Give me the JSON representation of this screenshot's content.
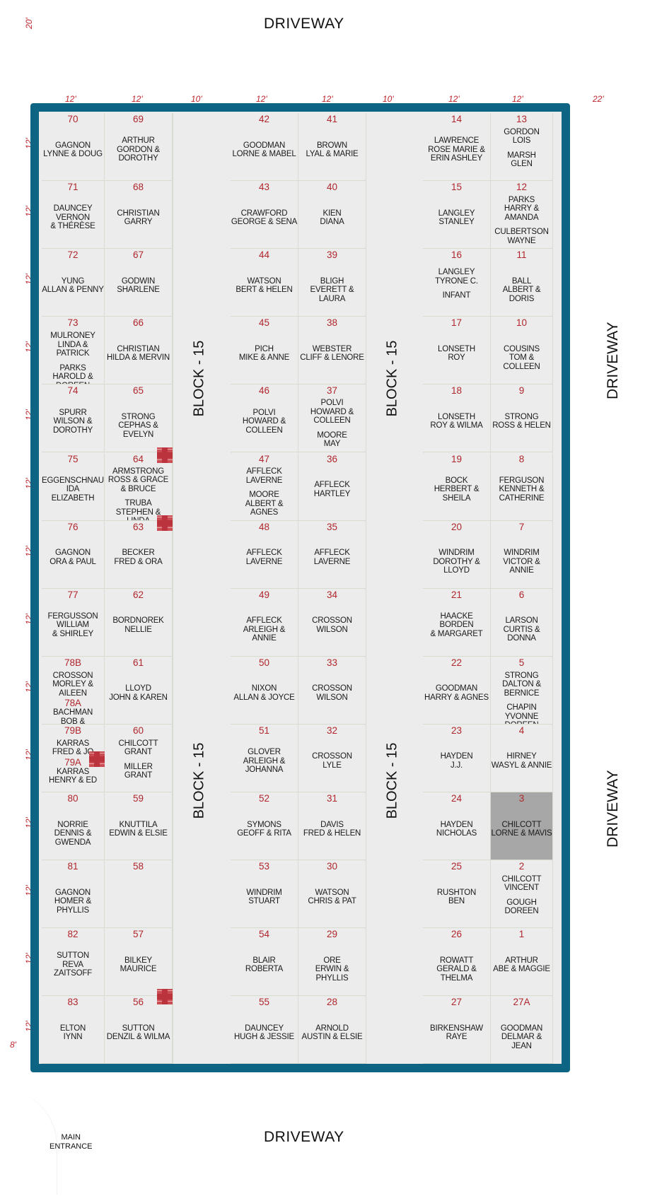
{
  "driveways": {
    "top": "DRIVEWAY",
    "bottom": "DRIVEWAY",
    "right_upper": "DRIVEWAY",
    "right_lower": "DRIVEWAY"
  },
  "dimensions": {
    "corner": "20'",
    "columns": [
      "12'",
      "12'",
      "10'",
      "12'",
      "12'",
      "10'",
      "12'",
      "12'",
      "22'"
    ],
    "row": "12'",
    "bottom_left": "8'"
  },
  "block_label": "BLOCK - 15",
  "entrance": {
    "line1": "MAIN",
    "line2": "ENTRANCE"
  },
  "colors": {
    "frame": "#0d6483",
    "plot_number": "#b0262c",
    "occupied_grey": "#a7a7a7",
    "marker": "#c93b44"
  },
  "columns": [
    [
      {
        "n": "70",
        "lines": [
          "GAGNON",
          "LYNNE  &  DOUG"
        ]
      },
      {
        "n": "71",
        "lines": [
          "DAUNCEY",
          "VERNON",
          "& THÉRÈSE"
        ]
      },
      {
        "n": "72",
        "lines": [
          "YUNG",
          "ALLAN & PENNY"
        ]
      },
      {
        "n": "73",
        "lines": [
          "MULRONEY",
          "LINDA & PATRICK",
          "",
          "PARKS",
          "HAROLD & DOREEN"
        ]
      },
      {
        "n": "74",
        "lines": [
          "SPURR",
          "WILSON &",
          "DOROTHY"
        ]
      },
      {
        "n": "75",
        "lines": [
          "EGGENSCHNAUR",
          "IDA",
          "ELIZABETH"
        ]
      },
      {
        "n": "76",
        "lines": [
          "GAGNON",
          "ORA & PAUL"
        ]
      },
      {
        "n": "77",
        "lines": [
          "FERGUSSON",
          "WILLIAM",
          "& SHIRLEY"
        ]
      },
      {
        "n": "78B",
        "lines": [
          "CROSSON",
          "MORLEY & AILEEN",
          "#78A",
          "BACHMAN",
          "BOB & DARLENE"
        ]
      },
      {
        "n": "79B",
        "lines": [
          "KARRAS",
          "FRED & JO",
          "#79A",
          "KARRAS",
          "HENRY & ED"
        ]
      },
      {
        "n": "80",
        "lines": [
          "NORRIE",
          "DENNIS & GWENDA"
        ]
      },
      {
        "n": "81",
        "lines": [
          "GAGNON",
          "HOMER & PHYLLIS"
        ]
      },
      {
        "n": "82",
        "lines": [
          "SUTTON",
          "REVA",
          "ZAITSOFF"
        ]
      },
      {
        "n": "83",
        "lines": [
          "ELTON",
          "IYNN"
        ]
      }
    ],
    [
      {
        "n": "69",
        "lines": [
          "ARTHUR",
          "GORDON &",
          "DOROTHY"
        ]
      },
      {
        "n": "68",
        "lines": [
          "CHRISTIAN",
          "GARRY"
        ]
      },
      {
        "n": "67",
        "lines": [
          "GODWIN",
          "SHARLENE"
        ]
      },
      {
        "n": "66",
        "lines": [
          "CHRISTIAN",
          "HILDA & MERVIN"
        ]
      },
      {
        "n": "65",
        "lines": [
          "STRONG",
          "CEPHAS & EVELYN"
        ]
      },
      {
        "n": "64",
        "lines": [
          "ARMSTRONG",
          "ROSS & GRACE",
          "& BRUCE",
          "",
          "TRUBA",
          "STEPHEN & LINDA"
        ]
      },
      {
        "n": "63",
        "lines": [
          "BECKER",
          "FRED & ORA"
        ]
      },
      {
        "n": "62",
        "lines": [
          "BORDNOREK",
          "NELLIE"
        ]
      },
      {
        "n": "61",
        "lines": [
          "LLOYD",
          "JOHN & KAREN"
        ]
      },
      {
        "n": "60",
        "lines": [
          "CHILCOTT",
          "GRANT",
          "",
          "MILLER",
          "GRANT"
        ]
      },
      {
        "n": "59",
        "lines": [
          "KNUTTILA",
          "EDWIN & ELSIE"
        ]
      },
      {
        "n": "58",
        "lines": []
      },
      {
        "n": "57",
        "lines": [
          "BILKEY",
          "MAURICE"
        ]
      },
      {
        "n": "56",
        "lines": [
          "SUTTON",
          "DENZIL & WILMA"
        ]
      }
    ],
    [
      {
        "n": "42",
        "lines": [
          "GOODMAN",
          "LORNE & MABEL"
        ]
      },
      {
        "n": "43",
        "lines": [
          "CRAWFORD",
          "GEORGE & SENA"
        ]
      },
      {
        "n": "44",
        "lines": [
          "WATSON",
          "BERT & HELEN"
        ]
      },
      {
        "n": "45",
        "lines": [
          "PICH",
          "MIKE & ANNE"
        ]
      },
      {
        "n": "46",
        "lines": [
          "POLVI",
          "HOWARD &",
          "COLLEEN"
        ]
      },
      {
        "n": "47",
        "lines": [
          "AFFLECK",
          "LAVERNE",
          "",
          "MOORE",
          "ALBERT & AGNES"
        ]
      },
      {
        "n": "48",
        "lines": [
          "AFFLECK",
          "LAVERNE"
        ]
      },
      {
        "n": "49",
        "lines": [
          "AFFLECK",
          "ARLEIGH & ANNIE"
        ]
      },
      {
        "n": "50",
        "lines": [
          "NIXON",
          "ALLAN & JOYCE"
        ]
      },
      {
        "n": "51",
        "lines": [
          "GLOVER",
          "ARLEIGH &",
          "JOHANNA"
        ]
      },
      {
        "n": "52",
        "lines": [
          "SYMONS",
          "GEOFF & RITA"
        ]
      },
      {
        "n": "53",
        "lines": [
          "WINDRIM",
          "STUART"
        ]
      },
      {
        "n": "54",
        "lines": [
          "BLAIR",
          "ROBERTA"
        ]
      },
      {
        "n": "55",
        "lines": [
          "DAUNCEY",
          "HUGH & JESSIE"
        ]
      }
    ],
    [
      {
        "n": "41",
        "lines": [
          "BROWN",
          "LYAL & MARIE"
        ]
      },
      {
        "n": "40",
        "lines": [
          "KIEN",
          "DIANA"
        ]
      },
      {
        "n": "39",
        "lines": [
          "BLIGH",
          "EVERETT & LAURA"
        ]
      },
      {
        "n": "38",
        "lines": [
          "WEBSTER",
          "CLIFF & LENORE"
        ]
      },
      {
        "n": "37",
        "lines": [
          "POLVI",
          "HOWARD &",
          "COLLEEN",
          "",
          "MOORE",
          "MAY"
        ]
      },
      {
        "n": "36",
        "lines": [
          "AFFLECK",
          "HARTLEY"
        ]
      },
      {
        "n": "35",
        "lines": [
          "AFFLECK",
          "LAVERNE"
        ]
      },
      {
        "n": "34",
        "lines": [
          "CROSSON",
          "WILSON"
        ]
      },
      {
        "n": "33",
        "lines": [
          "CROSSON",
          "WILSON"
        ]
      },
      {
        "n": "32",
        "lines": [
          "CROSSON",
          "LYLE"
        ]
      },
      {
        "n": "31",
        "lines": [
          "DAVIS",
          "FRED & HELEN"
        ]
      },
      {
        "n": "30",
        "lines": [
          "WATSON",
          "CHRIS & PAT"
        ]
      },
      {
        "n": "29",
        "lines": [
          "ORE",
          "ERWIN & PHYLLIS"
        ]
      },
      {
        "n": "28",
        "lines": [
          "ARNOLD",
          "AUSTIN & ELSIE"
        ]
      }
    ],
    [
      {
        "n": "14",
        "lines": [
          "LAWRENCE",
          "ROSE MARIE &",
          "ERIN ASHLEY"
        ]
      },
      {
        "n": "15",
        "lines": [
          "LANGLEY",
          "STANLEY"
        ]
      },
      {
        "n": "16",
        "lines": [
          "LANGLEY",
          "TYRONE C.",
          "",
          "INFANT"
        ]
      },
      {
        "n": "17",
        "lines": [
          "LONSETH",
          "ROY"
        ]
      },
      {
        "n": "18",
        "lines": [
          "LONSETH",
          "ROY & WILMA"
        ]
      },
      {
        "n": "19",
        "lines": [
          "BOCK",
          "HERBERT &",
          "SHEILA"
        ]
      },
      {
        "n": "20",
        "lines": [
          "WINDRIM",
          "DOROTHY & LLOYD"
        ]
      },
      {
        "n": "21",
        "lines": [
          "HAACKE",
          "BORDEN",
          "& MARGARET"
        ]
      },
      {
        "n": "22",
        "lines": [
          "GOODMAN",
          "HARRY & AGNES"
        ]
      },
      {
        "n": "23",
        "lines": [
          "HAYDEN",
          "J.J."
        ]
      },
      {
        "n": "24",
        "lines": [
          "HAYDEN",
          "NICHOLAS"
        ]
      },
      {
        "n": "25",
        "lines": [
          "RUSHTON",
          "BEN"
        ]
      },
      {
        "n": "26",
        "lines": [
          "ROWATT",
          "GERALD & THELMA"
        ]
      },
      {
        "n": "27",
        "lines": [
          "BIRKENSHAW",
          "RAYE"
        ]
      }
    ],
    [
      {
        "n": "13",
        "lines": [
          "GORDON",
          "LOIS",
          "",
          "MARSH",
          "GLEN"
        ]
      },
      {
        "n": "12",
        "lines": [
          "PARKS",
          "HARRY & AMANDA",
          "",
          "CULBERTSON",
          "WAYNE"
        ]
      },
      {
        "n": "11",
        "lines": [
          "BALL",
          "ALBERT & DORIS"
        ]
      },
      {
        "n": "10",
        "lines": [
          "COUSINS",
          "TOM & COLLEEN"
        ]
      },
      {
        "n": "9",
        "lines": [
          "STRONG",
          "ROSS & HELEN"
        ]
      },
      {
        "n": "8",
        "lines": [
          "FERGUSON",
          "KENNETH &",
          "CATHERINE"
        ]
      },
      {
        "n": "7",
        "lines": [
          "WINDRIM",
          "VICTOR & ANNIE"
        ]
      },
      {
        "n": "6",
        "lines": [
          "LARSON",
          "CURTIS & DONNA"
        ]
      },
      {
        "n": "5",
        "lines": [
          "STRONG",
          "DALTON & BERNICE",
          "",
          "CHAPIN",
          "YVONNE DOREEN"
        ]
      },
      {
        "n": "4",
        "lines": [
          "HIRNEY",
          "WASYL & ANNIE"
        ]
      },
      {
        "n": "3",
        "lines": [
          "CHILCOTT",
          "LORNE & MAVIS"
        ],
        "grey": true
      },
      {
        "n": "2",
        "lines": [
          "CHILCOTT",
          "VINCENT",
          "",
          "GOUGH",
          "DOREEN"
        ]
      },
      {
        "n": "1",
        "lines": [
          "ARTHUR",
          "ABE & MAGGIE"
        ]
      },
      {
        "n": "27A",
        "lines": [
          "GOODMAN",
          "DELMAR & JEAN"
        ]
      }
    ]
  ]
}
